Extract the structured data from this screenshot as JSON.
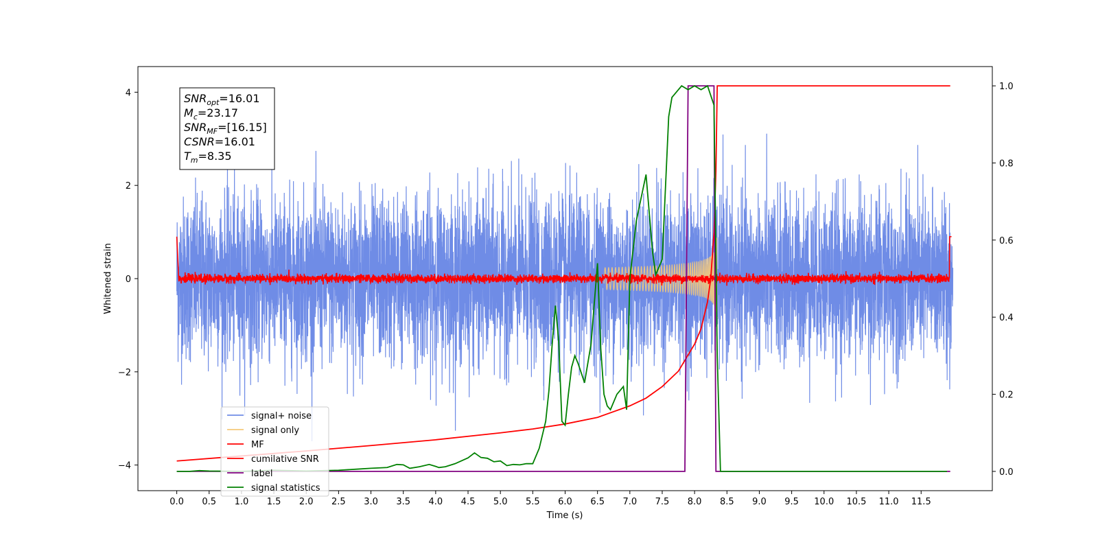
{
  "chart_data": {
    "type": "line",
    "xlabel": "Time (s)",
    "ylabel": "Whitened strain",
    "xlim": [
      -0.6,
      12.6
    ],
    "ylim": [
      -4.55,
      4.55
    ],
    "y2lim": [
      -0.05,
      1.05
    ],
    "x_ticks": [
      0.0,
      0.5,
      1.0,
      1.5,
      2.0,
      2.5,
      3.0,
      3.5,
      4.0,
      4.5,
      5.0,
      5.5,
      6.0,
      6.5,
      7.0,
      7.5,
      8.0,
      8.5,
      9.0,
      9.5,
      10.0,
      10.5,
      11.0,
      11.5
    ],
    "x_tick_labels": [
      "0.0",
      "0.5",
      "1.0",
      "1.5",
      "2.0",
      "2.5",
      "3.0",
      "3.5",
      "4.0",
      "4.5",
      "5.0",
      "5.5",
      "6.0",
      "6.5",
      "7.0",
      "7.5",
      "8.0",
      "8.5",
      "9.0",
      "9.5",
      "10.0",
      "10.5",
      "11.0",
      "11.5"
    ],
    "y_ticks": [
      -4,
      -2,
      0,
      2,
      4
    ],
    "y_tick_labels": [
      "−4",
      "−2",
      "0",
      "2",
      "4"
    ],
    "y2_ticks": [
      0.0,
      0.2,
      0.4,
      0.6,
      0.8,
      1.0
    ],
    "y2_tick_labels": [
      "0.0",
      "0.2",
      "0.4",
      "0.6",
      "0.8",
      "1.0"
    ],
    "grid": false,
    "legend_position": "lower-left",
    "noise_amplitude": 1.4,
    "noise_extremes_mag": 4.1,
    "signal_merger_time": 8.35,
    "annotation": [
      {
        "sym": "SNR",
        "sub": "opt",
        "value": "=16.01"
      },
      {
        "sym": "M",
        "sub": "c",
        "value": "=23.17"
      },
      {
        "sym": "SNR",
        "sub": "MF",
        "value": "=[16.15]"
      },
      {
        "sym": "CSNR",
        "sub": "",
        "value": "=16.01"
      },
      {
        "sym": "T",
        "sub": "m",
        "value": "=8.35"
      }
    ],
    "series": [
      {
        "name": "signal+ noise",
        "color": "#6f8ce6",
        "axis": "left"
      },
      {
        "name": "signal only",
        "color": "#f5c97a",
        "axis": "left"
      },
      {
        "name": "MF",
        "color": "#ff0000",
        "axis": "left"
      },
      {
        "name": "cumilative SNR",
        "color": "#ff0000",
        "axis": "right",
        "x": [
          0.0,
          1.0,
          2.0,
          3.0,
          4.0,
          5.0,
          5.5,
          6.0,
          6.5,
          7.0,
          7.25,
          7.5,
          7.75,
          8.0,
          8.1,
          8.2,
          8.25,
          8.3,
          8.33,
          8.35,
          8.4,
          11.95
        ],
        "values": [
          0.027,
          0.04,
          0.053,
          0.067,
          0.082,
          0.1,
          0.11,
          0.123,
          0.14,
          0.17,
          0.19,
          0.22,
          0.26,
          0.33,
          0.37,
          0.44,
          0.5,
          0.62,
          0.78,
          1.0,
          1.0,
          1.0
        ]
      },
      {
        "name": "label",
        "color": "#800080",
        "axis": "right",
        "x": [
          0.0,
          7.85,
          7.9,
          8.3,
          8.33,
          11.95
        ],
        "values": [
          0.0,
          0.0,
          1.0,
          1.0,
          0.0,
          0.0
        ]
      },
      {
        "name": "signal statistics",
        "color": "#008000",
        "axis": "right",
        "x": [
          0.0,
          0.2,
          0.35,
          0.5,
          1.0,
          1.5,
          2.0,
          2.5,
          2.8,
          3.0,
          3.25,
          3.4,
          3.5,
          3.6,
          3.75,
          3.9,
          4.0,
          4.05,
          4.15,
          4.3,
          4.5,
          4.6,
          4.7,
          4.8,
          4.9,
          5.0,
          5.1,
          5.2,
          5.3,
          5.4,
          5.5,
          5.6,
          5.7,
          5.75,
          5.8,
          5.85,
          5.9,
          5.95,
          6.0,
          6.05,
          6.1,
          6.15,
          6.2,
          6.3,
          6.4,
          6.5,
          6.55,
          6.6,
          6.65,
          6.7,
          6.8,
          6.9,
          6.95,
          7.0,
          7.1,
          7.25,
          7.35,
          7.4,
          7.5,
          7.6,
          7.65,
          7.7,
          7.75,
          7.8,
          7.9,
          8.0,
          8.1,
          8.2,
          8.3,
          8.35,
          8.4,
          8.5,
          11.9
        ],
        "values": [
          0.0,
          0.0,
          0.002,
          0.001,
          0.0,
          0.003,
          0.001,
          0.003,
          0.006,
          0.008,
          0.01,
          0.018,
          0.017,
          0.008,
          0.012,
          0.018,
          0.013,
          0.01,
          0.012,
          0.02,
          0.035,
          0.048,
          0.036,
          0.034,
          0.025,
          0.027,
          0.015,
          0.018,
          0.017,
          0.02,
          0.02,
          0.06,
          0.13,
          0.21,
          0.33,
          0.43,
          0.34,
          0.13,
          0.12,
          0.2,
          0.27,
          0.3,
          0.28,
          0.23,
          0.33,
          0.54,
          0.32,
          0.2,
          0.17,
          0.16,
          0.2,
          0.22,
          0.16,
          0.5,
          0.65,
          0.77,
          0.57,
          0.51,
          0.55,
          0.92,
          0.97,
          0.98,
          0.99,
          1.0,
          0.99,
          1.0,
          0.99,
          1.0,
          0.95,
          0.3,
          0.0,
          0.0,
          0.0
        ]
      }
    ]
  }
}
